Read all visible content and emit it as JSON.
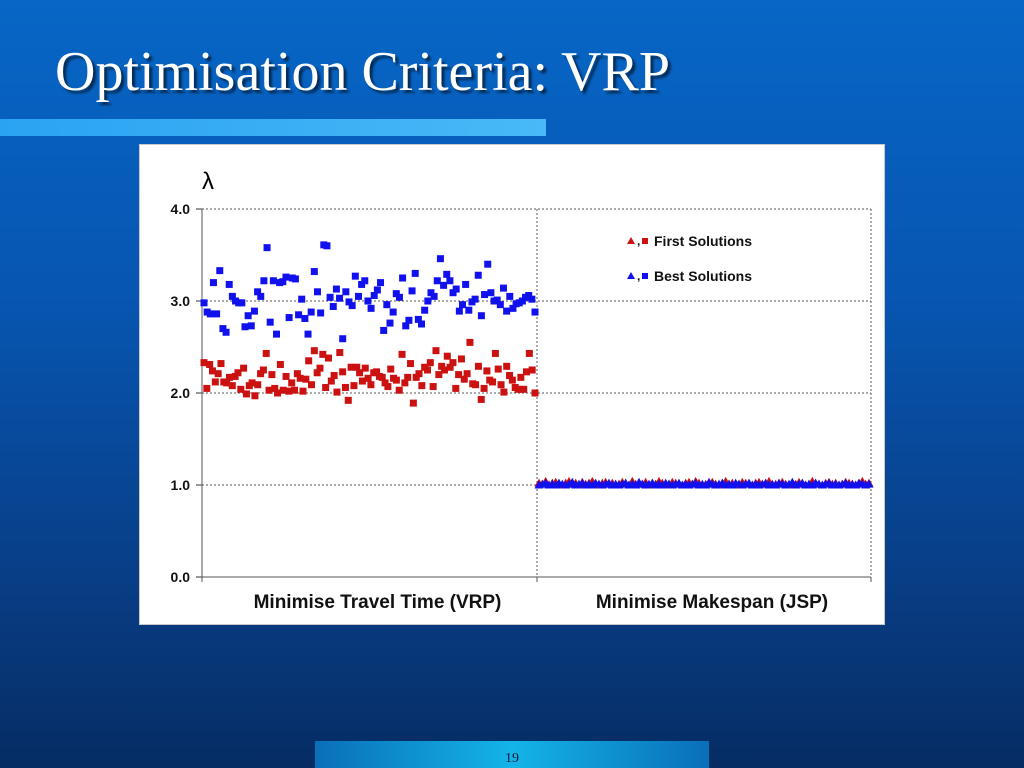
{
  "slide": {
    "title": "Optimisation Criteria: VRP",
    "page_number": "19"
  },
  "colors": {
    "first_solutions": "#cc1111",
    "best_solutions": "#1111ee",
    "grid": "#555555"
  },
  "chart_data": {
    "type": "scatter",
    "ylabel": "λ",
    "ylim": [
      0,
      4
    ],
    "yticks": [
      "0.0",
      "1.0",
      "2.0",
      "3.0",
      "4.0"
    ],
    "ytick_values": [
      0,
      1,
      2,
      3,
      4
    ],
    "grid": "dotted horizontal",
    "legend_position": "top-right",
    "categories": [
      "Minimise Travel Time (VRP)",
      "Minimise Makespan (JSP)"
    ],
    "legend": [
      {
        "marker_glyphs": "▲,■",
        "label": "First Solutions",
        "series": "first"
      },
      {
        "marker_glyphs": "▲,■",
        "label": "Best Solutions",
        "series": "best"
      }
    ],
    "series": [
      {
        "name": "First Solutions",
        "panel": "Minimise Travel Time (VRP)",
        "marker": "square",
        "values": [
          2.33,
          2.05,
          2.31,
          2.24,
          2.12,
          2.21,
          2.32,
          2.12,
          2.11,
          2.17,
          2.08,
          2.18,
          2.22,
          2.04,
          2.27,
          1.99,
          2.08,
          2.11,
          1.97,
          2.09,
          2.21,
          2.25,
          2.43,
          2.03,
          2.2,
          2.05,
          2.0,
          2.31,
          2.03,
          2.18,
          2.02,
          2.11,
          2.03,
          2.21,
          2.16,
          2.02,
          2.15,
          2.35,
          2.09,
          2.46,
          2.22,
          2.27,
          2.42,
          2.06,
          2.38,
          2.13,
          2.19,
          2.01,
          2.44,
          2.23,
          2.06,
          1.92,
          2.28,
          2.08,
          2.28,
          2.22,
          2.13,
          2.27,
          2.16,
          2.09,
          2.22,
          2.23,
          2.18,
          2.17,
          2.11,
          2.07,
          2.26,
          2.16,
          2.14,
          2.03,
          2.42,
          2.11,
          2.17,
          2.32,
          1.89,
          2.17,
          2.21,
          2.08,
          2.28,
          2.25,
          2.33,
          2.07,
          2.46,
          2.2,
          2.29,
          2.25,
          2.4,
          2.28,
          2.33,
          2.05,
          2.2,
          2.37,
          2.15,
          2.21,
          2.55,
          2.1,
          2.09,
          2.29,
          1.93,
          2.05,
          2.24,
          2.14,
          2.12,
          2.43,
          2.26,
          2.09,
          2.01,
          2.29,
          2.19,
          2.14,
          2.06,
          2.04,
          2.17,
          2.04,
          2.23,
          2.43,
          2.25,
          2.0
        ]
      },
      {
        "name": "Best Solutions",
        "panel": "Minimise Travel Time (VRP)",
        "marker": "square",
        "values": [
          2.98,
          2.88,
          2.86,
          3.2,
          2.86,
          3.33,
          2.7,
          2.66,
          3.18,
          3.05,
          3.0,
          2.98,
          2.98,
          2.72,
          2.84,
          2.73,
          2.89,
          3.1,
          3.05,
          3.22,
          3.58,
          2.77,
          3.22,
          2.64,
          3.2,
          3.21,
          3.26,
          2.82,
          3.25,
          3.24,
          2.85,
          3.02,
          2.81,
          2.64,
          2.88,
          3.32,
          3.1,
          2.87,
          3.61,
          3.6,
          3.04,
          2.94,
          3.13,
          3.03,
          2.59,
          3.1,
          2.99,
          2.95,
          3.27,
          3.05,
          3.18,
          3.22,
          3.0,
          2.92,
          3.06,
          3.12,
          3.2,
          2.68,
          2.96,
          2.76,
          2.88,
          3.08,
          3.04,
          3.25,
          2.73,
          2.79,
          3.11,
          3.3,
          2.8,
          2.75,
          2.9,
          3.0,
          3.09,
          3.05,
          3.22,
          3.46,
          3.17,
          3.29,
          3.22,
          3.09,
          3.13,
          2.89,
          2.96,
          3.18,
          2.9,
          2.99,
          3.02,
          3.28,
          2.84,
          3.07,
          3.4,
          3.09,
          3.0,
          3.01,
          2.96,
          3.14,
          2.89,
          3.05,
          2.92,
          2.97,
          2.98,
          3.0,
          3.04,
          3.06,
          3.02,
          2.88
        ]
      },
      {
        "name": "First Solutions",
        "panel": "Minimise Makespan (JSP)",
        "marker": "triangle",
        "values": [
          1.02,
          1.01,
          1.04,
          1.0,
          1.02,
          1.03,
          1.01,
          1.0,
          1.02,
          1.04,
          1.01,
          1.02,
          1.0,
          1.03,
          1.01,
          1.02,
          1.04,
          1.01,
          1.0,
          1.02,
          1.03,
          1.01,
          1.02,
          1.0,
          1.01,
          1.03,
          1.02,
          1.0,
          1.04,
          1.01,
          1.02,
          1.01,
          1.03,
          1.0,
          1.02,
          1.01,
          1.04,
          1.02,
          1.0,
          1.01,
          1.03,
          1.02,
          1.01,
          1.0,
          1.02,
          1.03,
          1.01,
          1.04,
          1.02,
          1.0,
          1.01,
          1.02,
          1.03,
          1.01,
          1.0,
          1.02,
          1.04,
          1.01,
          1.02,
          1.0,
          1.01,
          1.03,
          1.02,
          1.01,
          1.0,
          1.02,
          1.03,
          1.01,
          1.02,
          1.04,
          1.0,
          1.01,
          1.02,
          1.03,
          1.01,
          1.0,
          1.02,
          1.01,
          1.03,
          1.02,
          1.0,
          1.01,
          1.04,
          1.02,
          1.01,
          1.0,
          1.02,
          1.03,
          1.01,
          1.02,
          1.0,
          1.01,
          1.03,
          1.02,
          1.01,
          1.0,
          1.02,
          1.04,
          1.01,
          1.02
        ]
      },
      {
        "name": "Best Solutions",
        "panel": "Minimise Makespan (JSP)",
        "marker": "triangle",
        "values": [
          1.0,
          1.01,
          1.02,
          1.0,
          1.01,
          1.0,
          1.02,
          1.01,
          1.0,
          1.01,
          1.03,
          1.0,
          1.01,
          1.02,
          1.0,
          1.01,
          1.0,
          1.02,
          1.01,
          1.0,
          1.01,
          1.02,
          1.0,
          1.01,
          1.0,
          1.01,
          1.02,
          1.0,
          1.01,
          1.0,
          1.03,
          1.01,
          1.0,
          1.01,
          1.02,
          1.0,
          1.01,
          1.0,
          1.02,
          1.01,
          1.0,
          1.01,
          1.02,
          1.0,
          1.01,
          1.0,
          1.01,
          1.02,
          1.0,
          1.01,
          1.0,
          1.03,
          1.01,
          1.0,
          1.01,
          1.02,
          1.0,
          1.01,
          1.0,
          1.02,
          1.01,
          1.0,
          1.01,
          1.02,
          1.0,
          1.01,
          1.0,
          1.01,
          1.02,
          1.0,
          1.01,
          1.0,
          1.02,
          1.01,
          1.0,
          1.01,
          1.03,
          1.0,
          1.01,
          1.02,
          1.0,
          1.01,
          1.0,
          1.02,
          1.01,
          1.0,
          1.01,
          1.02,
          1.0,
          1.01,
          1.0,
          1.01,
          1.02,
          1.0,
          1.01,
          1.0,
          1.02,
          1.01,
          1.0,
          1.01
        ]
      }
    ]
  }
}
